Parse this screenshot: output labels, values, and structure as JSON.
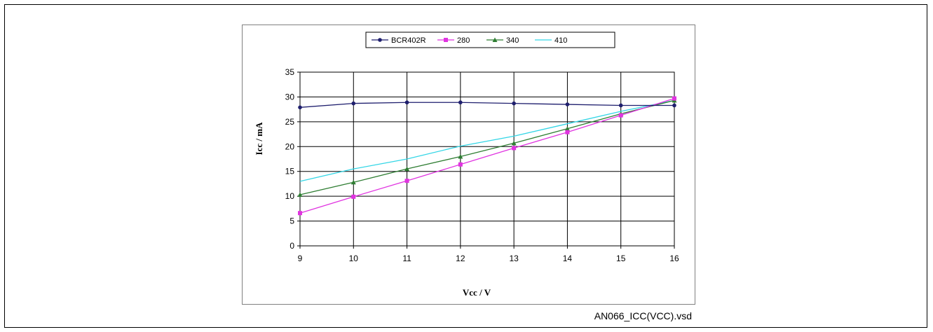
{
  "caption": "AN066_ICC(VCC).vsd",
  "colors": {
    "series": [
      "#1f1f6e",
      "#e033e0",
      "#2e7d32",
      "#33d6e6"
    ],
    "grid": "#000000",
    "frame": "#808080"
  },
  "chart_data": {
    "type": "line",
    "title": "",
    "xlabel": "Vcc / V",
    "ylabel": "Icc / mA",
    "x": [
      9,
      10,
      11,
      12,
      13,
      14,
      15,
      16
    ],
    "xlim": [
      9,
      16
    ],
    "ylim": [
      0,
      35
    ],
    "yticks": [
      0,
      5,
      10,
      15,
      20,
      25,
      30,
      35
    ],
    "grid": true,
    "legend_position": "top",
    "series": [
      {
        "name": "BCR402R",
        "marker": "circle",
        "values": [
          27.9,
          28.7,
          28.9,
          28.9,
          28.7,
          28.5,
          28.3,
          28.3
        ]
      },
      {
        "name": "280",
        "marker": "square",
        "values": [
          6.6,
          9.9,
          13.1,
          16.4,
          19.7,
          22.9,
          26.3,
          29.7
        ]
      },
      {
        "name": "340",
        "marker": "triangle",
        "values": [
          10.3,
          12.8,
          15.5,
          18.0,
          20.7,
          23.6,
          26.6,
          29.3
        ]
      },
      {
        "name": "410",
        "marker": "none",
        "values": [
          13.0,
          15.5,
          17.5,
          20.1,
          22.1,
          24.6,
          27.1,
          29.3
        ]
      }
    ]
  }
}
